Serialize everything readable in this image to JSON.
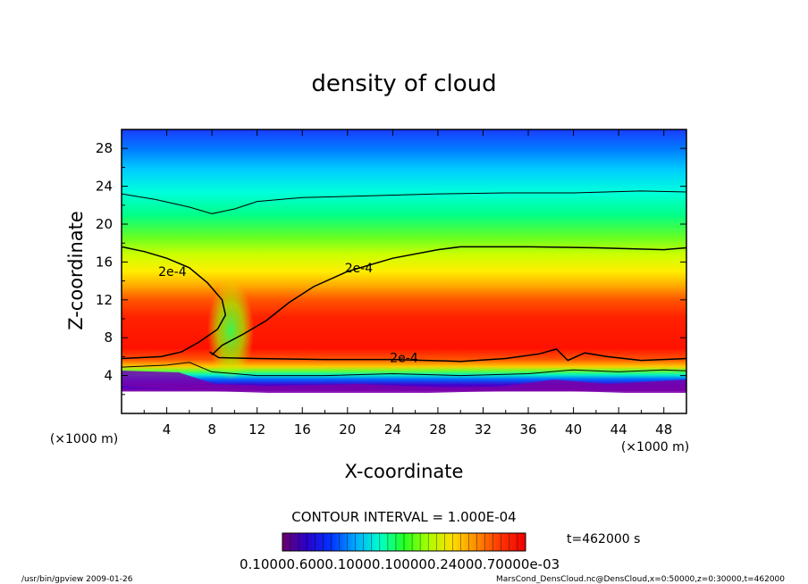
{
  "chart_data": {
    "type": "heatmap",
    "title": "density of cloud",
    "xlabel": "X-coordinate",
    "ylabel": "Z-coordinate",
    "x_unit": "(×1000 m)",
    "y_unit": "(×1000 m)",
    "xlim": [
      0,
      50
    ],
    "ylim": [
      0,
      30
    ],
    "x_ticks": [
      4,
      8,
      12,
      16,
      20,
      24,
      28,
      32,
      36,
      40,
      44,
      48
    ],
    "y_ticks": [
      4,
      8,
      12,
      16,
      20,
      24,
      28
    ],
    "contour_interval_text": "CONTOUR INTERVAL = 1.000E-04",
    "time_text": "t=462000 s",
    "colorbar_text": "0.10000.6000.10000.100000.24000.70000e-03",
    "contour_labels": [
      {
        "text": "2e-4",
        "x": 4.5,
        "z": 15.0
      },
      {
        "text": "2e-4",
        "x": 21.0,
        "z": 15.4
      },
      {
        "text": "2e-4",
        "x": 25.0,
        "z": 5.9
      }
    ],
    "contours": [
      {
        "level": "1e-4",
        "points": [
          [
            0,
            23.2
          ],
          [
            3,
            22.6
          ],
          [
            6,
            21.8
          ],
          [
            8,
            21.1
          ],
          [
            10,
            21.6
          ],
          [
            12,
            22.4
          ],
          [
            16,
            22.8
          ],
          [
            22,
            23.0
          ],
          [
            28,
            23.2
          ],
          [
            34,
            23.3
          ],
          [
            40,
            23.3
          ],
          [
            46,
            23.5
          ],
          [
            50,
            23.4
          ]
        ]
      },
      {
        "level": "2e-4",
        "points": [
          [
            0,
            17.6
          ],
          [
            2,
            17.1
          ],
          [
            4,
            16.4
          ],
          [
            6,
            15.4
          ],
          [
            7.6,
            13.8
          ],
          [
            8.9,
            12.0
          ],
          [
            9.2,
            10.4
          ],
          [
            8.5,
            8.9
          ],
          [
            6.8,
            7.5
          ],
          [
            5.3,
            6.5
          ],
          [
            3.5,
            6.0
          ],
          [
            0,
            5.8
          ]
        ]
      },
      {
        "level": "2e-4",
        "points": [
          [
            8,
            6.2
          ],
          [
            8.9,
            7.2
          ],
          [
            10.8,
            8.4
          ],
          [
            12.8,
            9.8
          ],
          [
            14.8,
            11.7
          ],
          [
            17,
            13.4
          ],
          [
            20,
            15.0
          ],
          [
            24,
            16.4
          ],
          [
            28,
            17.3
          ],
          [
            30,
            17.6
          ],
          [
            36,
            17.6
          ],
          [
            42,
            17.5
          ],
          [
            48,
            17.3
          ],
          [
            50,
            17.5
          ]
        ]
      },
      {
        "level": "2e-4",
        "points": [
          [
            7.8,
            6.5
          ],
          [
            8.6,
            5.9
          ],
          [
            12,
            5.8
          ],
          [
            18,
            5.7
          ],
          [
            24,
            5.7
          ],
          [
            30,
            5.5
          ],
          [
            34,
            5.8
          ],
          [
            37,
            6.3
          ],
          [
            38.5,
            6.8
          ],
          [
            39.5,
            5.6
          ],
          [
            41,
            6.4
          ],
          [
            43,
            6.0
          ],
          [
            46,
            5.6
          ],
          [
            50,
            5.8
          ]
        ]
      },
      {
        "level": "1e-4",
        "points": [
          [
            0,
            4.9
          ],
          [
            4,
            5.1
          ],
          [
            6,
            5.4
          ],
          [
            8,
            4.4
          ],
          [
            12,
            4.0
          ],
          [
            18,
            4.0
          ],
          [
            24,
            4.2
          ],
          [
            30,
            4.0
          ],
          [
            36,
            4.2
          ],
          [
            40,
            4.6
          ],
          [
            44,
            4.4
          ],
          [
            48,
            4.6
          ],
          [
            50,
            4.5
          ]
        ]
      }
    ],
    "colorbar_colors": [
      "#7a007a",
      "#3300cc",
      "#0022ff",
      "#0088ff",
      "#00ddff",
      "#00ffaa",
      "#22ee22",
      "#88ff00",
      "#ddff00",
      "#ffdd00",
      "#ff9900",
      "#ff4400",
      "#ff1100",
      "#ee0000"
    ]
  },
  "footer": {
    "left": "/usr/bin/gpview  2009-01-26",
    "right": "MarsCond_DensCloud.nc@DensCloud,x=0:50000,z=0:30000,t=462000"
  }
}
